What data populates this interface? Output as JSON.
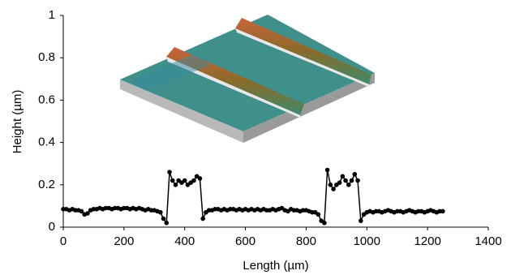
{
  "chart_data": {
    "type": "line",
    "markers": true,
    "color": "#000000",
    "xlabel": "Length (µm)",
    "ylabel": "Height (µm)",
    "xlim": [
      0,
      1400
    ],
    "xticks": [
      0,
      200,
      400,
      600,
      800,
      1000,
      1200,
      1400
    ],
    "ylim": [
      0,
      1
    ],
    "yticks": [
      0,
      0.2,
      0.4,
      0.6,
      0.8,
      1
    ],
    "x": [
      0,
      10,
      20,
      30,
      40,
      50,
      60,
      70,
      80,
      90,
      100,
      110,
      120,
      130,
      140,
      150,
      160,
      170,
      180,
      190,
      200,
      210,
      220,
      230,
      240,
      250,
      260,
      270,
      280,
      290,
      300,
      310,
      320,
      330,
      340,
      350,
      360,
      370,
      380,
      390,
      400,
      410,
      420,
      430,
      440,
      450,
      460,
      470,
      480,
      490,
      500,
      510,
      520,
      530,
      540,
      550,
      560,
      570,
      580,
      590,
      600,
      610,
      620,
      630,
      640,
      650,
      660,
      670,
      680,
      690,
      700,
      710,
      720,
      730,
      740,
      750,
      760,
      770,
      780,
      790,
      800,
      810,
      820,
      830,
      840,
      850,
      860,
      870,
      880,
      890,
      900,
      910,
      920,
      930,
      940,
      950,
      960,
      970,
      980,
      990,
      1000,
      1010,
      1020,
      1030,
      1040,
      1050,
      1060,
      1070,
      1080,
      1090,
      1100,
      1110,
      1120,
      1130,
      1140,
      1150,
      1160,
      1170,
      1180,
      1190,
      1200,
      1210,
      1220,
      1230,
      1240,
      1250
    ],
    "values": [
      0.085,
      0.085,
      0.08,
      0.085,
      0.08,
      0.08,
      0.075,
      0.06,
      0.065,
      0.08,
      0.085,
      0.085,
      0.09,
      0.085,
      0.09,
      0.09,
      0.085,
      0.09,
      0.09,
      0.085,
      0.09,
      0.09,
      0.085,
      0.09,
      0.085,
      0.09,
      0.085,
      0.08,
      0.085,
      0.08,
      0.08,
      0.075,
      0.07,
      0.04,
      0.02,
      0.26,
      0.22,
      0.2,
      0.22,
      0.21,
      0.22,
      0.2,
      0.21,
      0.22,
      0.24,
      0.23,
      0.04,
      0.07,
      0.08,
      0.08,
      0.085,
      0.085,
      0.08,
      0.085,
      0.08,
      0.085,
      0.085,
      0.08,
      0.085,
      0.08,
      0.085,
      0.08,
      0.085,
      0.08,
      0.085,
      0.08,
      0.085,
      0.08,
      0.08,
      0.085,
      0.08,
      0.085,
      0.09,
      0.08,
      0.075,
      0.085,
      0.08,
      0.08,
      0.075,
      0.08,
      0.08,
      0.075,
      0.07,
      0.07,
      0.06,
      0.03,
      0.02,
      0.27,
      0.2,
      0.18,
      0.2,
      0.21,
      0.24,
      0.22,
      0.2,
      0.22,
      0.25,
      0.22,
      0.03,
      0.06,
      0.07,
      0.075,
      0.07,
      0.075,
      0.075,
      0.07,
      0.075,
      0.08,
      0.075,
      0.07,
      0.075,
      0.075,
      0.07,
      0.075,
      0.08,
      0.075,
      0.07,
      0.075,
      0.075,
      0.07,
      0.075,
      0.08,
      0.075,
      0.07,
      0.075,
      0.075
    ]
  }
}
